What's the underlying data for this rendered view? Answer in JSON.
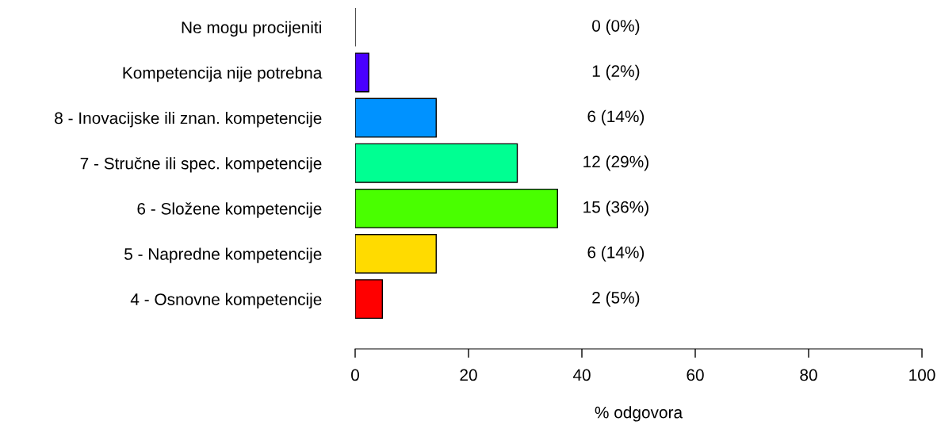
{
  "chart_data": {
    "type": "bar",
    "orientation": "horizontal",
    "xlabel": "% odgovora",
    "categories": [
      "Ne mogu procijeniti",
      "Kompetencija nije potrebna",
      "8 - Inovacijske ili znan. kompetencije",
      "7 - Stručne ili spec. kompetencije",
      "6 - Složene kompetencije",
      "5 - Napredne kompetencije",
      "4 - Osnovne kompetencije"
    ],
    "values": [
      0,
      2.4,
      14.3,
      28.6,
      35.7,
      14.3,
      4.8
    ],
    "colors": [
      "#000000",
      "#4900ff",
      "#0092ff",
      "#00ff92",
      "#49ff00",
      "#ffdb00",
      "#ff0000"
    ],
    "value_labels": [
      "0 (0%)",
      "1 (2%)",
      "6 (14%)",
      "12 (29%)",
      "15 (36%)",
      "6 (14%)",
      "2 (5%)"
    ],
    "xlim": [
      0,
      100
    ],
    "xticks": [
      0,
      20,
      40,
      60,
      80,
      100
    ],
    "grid": false,
    "legend": false
  }
}
